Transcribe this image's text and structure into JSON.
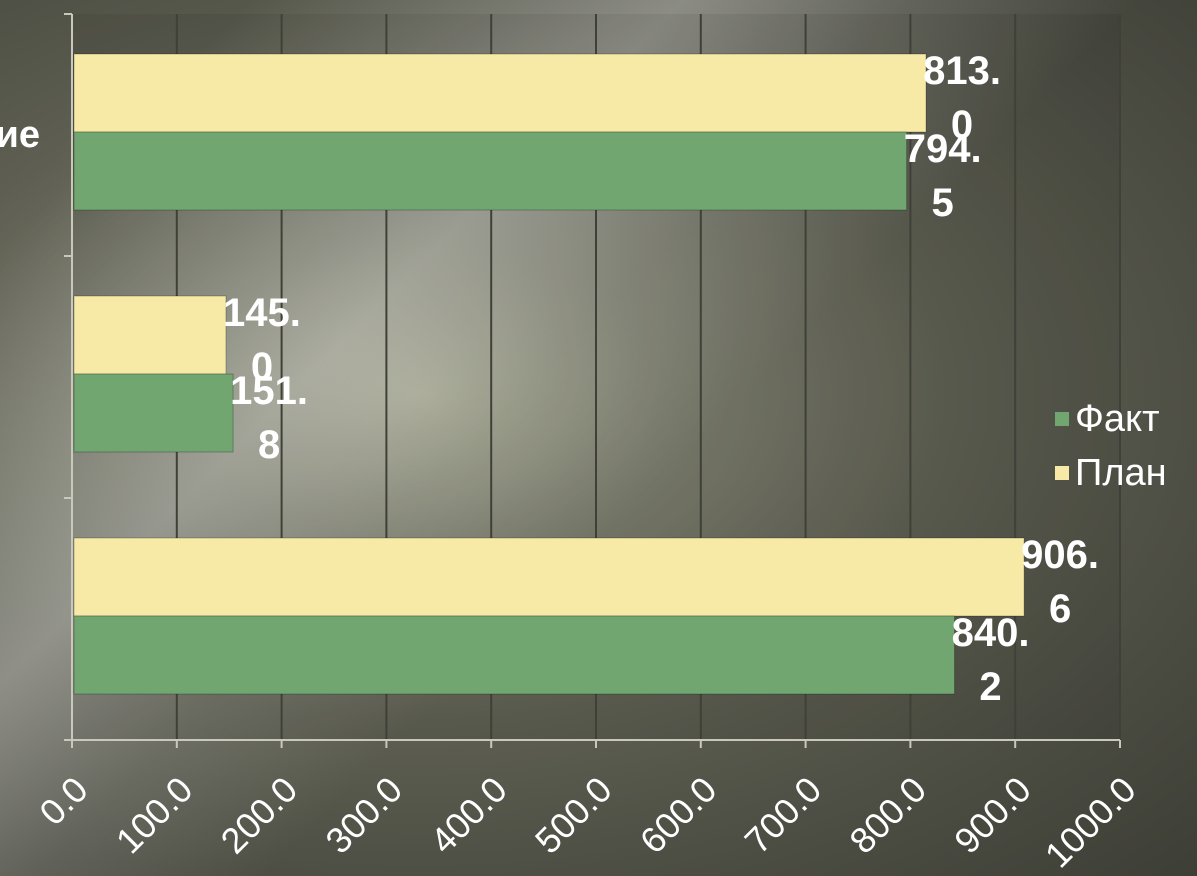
{
  "chart_data": {
    "type": "bar",
    "orientation": "horizontal",
    "categories": [
      "",
      "",
      "ие"
    ],
    "series": [
      {
        "name": "Факт",
        "color": "#72a670",
        "values": [
          840.2,
          151.8,
          794.5
        ],
        "labels": [
          [
            "840.",
            "2"
          ],
          [
            "151.",
            "8"
          ],
          [
            "794.",
            "5"
          ]
        ]
      },
      {
        "name": "План",
        "color": "#f7e9a6",
        "values": [
          906.6,
          145.0,
          813.0
        ],
        "labels": [
          [
            "906.",
            "6"
          ],
          [
            "145.",
            "0"
          ],
          [
            "813.",
            "0"
          ]
        ]
      }
    ],
    "xlim": [
      0,
      1000
    ],
    "xticks": [
      "0.0",
      "100.0",
      "200.0",
      "300.0",
      "400.0",
      "500.0",
      "600.0",
      "700.0",
      "800.0",
      "900.0",
      "1000.0"
    ],
    "grid": true,
    "legend_position": "right",
    "xlabel": "",
    "ylabel": ""
  }
}
